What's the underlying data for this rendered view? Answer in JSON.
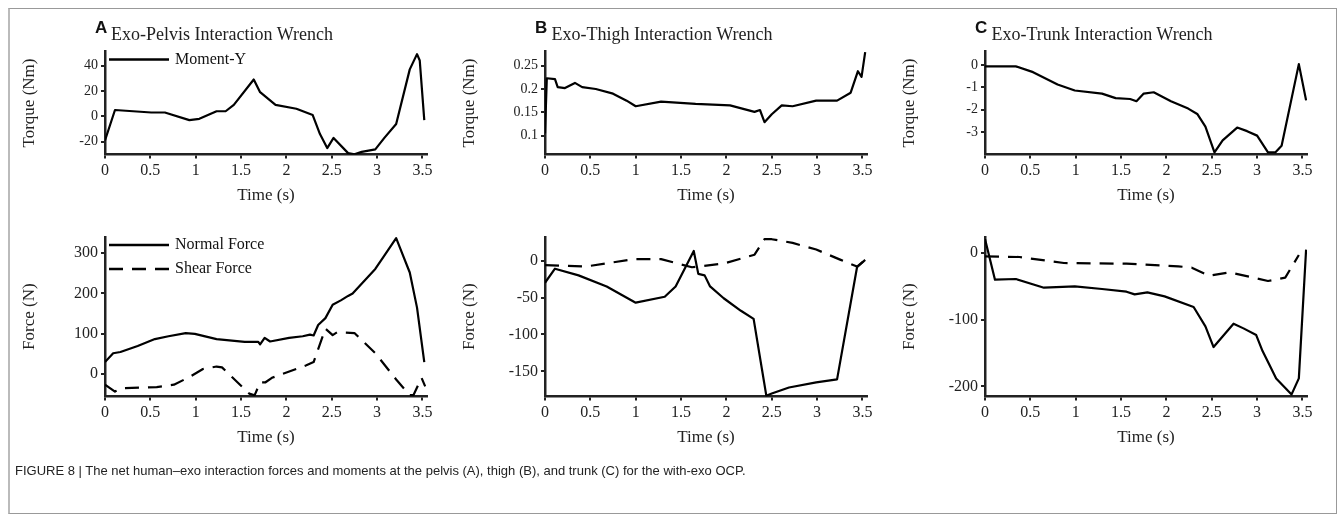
{
  "chart_data": [
    {
      "type": "line",
      "title": "Exo-Pelvis Interaction Wrench",
      "xlabel": "Time (s)",
      "ylabel": "Torque (Nm)",
      "annotations": [
        "A"
      ],
      "xlim": [
        0,
        3.55
      ],
      "xticks": [
        0,
        0.5,
        1,
        1.5,
        2,
        2.5,
        3,
        3.5
      ],
      "ylim": [
        -30,
        51
      ],
      "yticks": [
        -20,
        0,
        20,
        40
      ],
      "grid": false,
      "legend": "top left",
      "marker": "none",
      "line_style": "solid",
      "series": [
        {
          "name": "Moment-Y",
          "color": "#000000",
          "x": [
            0,
            0.11,
            0.51,
            0.66,
            0.93,
            1.04,
            1.23,
            1.33,
            1.42,
            1.64,
            1.71,
            1.88,
            2.11,
            2.29,
            2.37,
            2.45,
            2.52,
            2.68,
            2.75,
            2.83,
            2.98,
            3.08,
            3.21,
            3.36,
            3.44,
            3.47,
            3.52
          ],
          "values": [
            -19,
            5,
            3,
            3,
            -3,
            -2,
            4,
            4,
            9,
            29,
            19,
            9,
            6,
            1,
            -14,
            -25,
            -17,
            -29,
            -30,
            -28,
            -26,
            -17,
            -6,
            37,
            49,
            44,
            -3
          ]
        }
      ]
    },
    {
      "type": "line",
      "title": "Exo-Thigh Interaction Wrench",
      "xlabel": "Time (s)",
      "ylabel": "Torque (Nm)",
      "annotations": [
        "B"
      ],
      "xlim": [
        0,
        3.55
      ],
      "xticks": [
        0,
        0.5,
        1,
        1.5,
        2,
        2.5,
        3,
        3.5
      ],
      "ylim": [
        0.06,
        0.28
      ],
      "yticks": [
        0.1,
        0.15,
        0.2,
        0.25
      ],
      "grid": false,
      "marker": "none",
      "line_style": "solid",
      "series": [
        {
          "color": "#000000",
          "x": [
            0,
            0.02,
            0.11,
            0.14,
            0.22,
            0.33,
            0.41,
            0.56,
            0.75,
            0.9,
            1.0,
            1.28,
            1.66,
            2.04,
            2.31,
            2.37,
            2.42,
            2.5,
            2.61,
            2.73,
            2.99,
            3.22,
            3.37,
            3.45,
            3.49,
            3.53
          ],
          "values": [
            0.105,
            0.223,
            0.221,
            0.204,
            0.202,
            0.213,
            0.204,
            0.2,
            0.19,
            0.175,
            0.163,
            0.173,
            0.168,
            0.165,
            0.151,
            0.155,
            0.129,
            0.146,
            0.165,
            0.163,
            0.175,
            0.175,
            0.192,
            0.238,
            0.226,
            0.279
          ]
        }
      ]
    },
    {
      "type": "line",
      "title": "Exo-Trunk Interaction Wrench",
      "xlabel": "Time (s)",
      "ylabel": "Torque (Nm)",
      "annotations": [
        "C"
      ],
      "xlim": [
        0,
        3.55
      ],
      "xticks": [
        0,
        0.5,
        1,
        1.5,
        2,
        2.5,
        3,
        3.5
      ],
      "ylim": [
        -4,
        0.6
      ],
      "yticks": [
        -3,
        -2,
        -1,
        0
      ],
      "grid": false,
      "marker": "none",
      "line_style": "solid",
      "series": [
        {
          "color": "#000000",
          "x": [
            0,
            0.11,
            0.34,
            0.53,
            0.8,
            0.99,
            1.29,
            1.44,
            1.6,
            1.67,
            1.75,
            1.86,
            2.05,
            2.24,
            2.34,
            2.43,
            2.53,
            2.62,
            2.78,
            2.89,
            3.0,
            3.12,
            3.2,
            3.27,
            3.46,
            3.54
          ],
          "values": [
            -0.06,
            -0.06,
            -0.06,
            -0.32,
            -0.87,
            -1.14,
            -1.28,
            -1.48,
            -1.52,
            -1.62,
            -1.28,
            -1.22,
            -1.62,
            -1.95,
            -2.19,
            -2.76,
            -3.91,
            -3.37,
            -2.8,
            -2.96,
            -3.16,
            -3.91,
            -3.91,
            -3.61,
            0.04,
            -1.58
          ]
        }
      ]
    },
    {
      "type": "line",
      "xlabel": "Time (s)",
      "ylabel": "Force (N)",
      "annotations": [
        "FIGURE 8 | The net human–exo interaction forces and moments at the pelvis (A), thigh (B), and trunk (C) for the with-exo OCP."
      ],
      "xlim": [
        0,
        3.55
      ],
      "xticks": [
        0,
        0.5,
        1,
        1.5,
        2,
        2.5,
        3,
        3.5
      ],
      "ylim": [
        -55,
        340
      ],
      "yticks": [
        0,
        100,
        200,
        300
      ],
      "grid": false,
      "legend": "top left",
      "marker": "none",
      "line_style": "solid",
      "series": [
        {
          "name": "Normal Force",
          "color": "#000000",
          "x": [
            0,
            0.09,
            0.17,
            0.36,
            0.55,
            0.7,
            0.89,
            0.99,
            1.23,
            1.54,
            1.69,
            1.71,
            1.76,
            1.82,
            2.03,
            2.18,
            2.26,
            2.3,
            2.35,
            2.43,
            2.51,
            2.6,
            2.68,
            2.73,
            2.98,
            3.21,
            3.36,
            3.44,
            3.52
          ],
          "values": [
            30,
            52,
            55,
            70,
            87,
            94,
            102,
            100,
            87,
            80,
            80,
            74,
            90,
            81,
            90,
            94,
            98,
            96,
            122,
            139,
            172,
            183,
            194,
            200,
            261,
            337,
            252,
            165,
            30
          ]
        },
        {
          "name": "Shear Force",
          "color": "#000000",
          "line_style": "dashed",
          "x": [
            0,
            0.11,
            0.17,
            0.57,
            0.76,
            0.93,
            1.08,
            1.23,
            1.29,
            1.59,
            1.65,
            1.71,
            1.77,
            1.84,
            2.22,
            2.3,
            2.43,
            2.51,
            2.56,
            2.75,
            2.98,
            3.21,
            3.36,
            3.4,
            3.49,
            3.53
          ],
          "values": [
            -26,
            -43,
            -35,
            -32,
            -26,
            -7,
            13,
            19,
            17,
            -48,
            -52,
            -20,
            -20,
            -9,
            22,
            30,
            113,
            97,
            104,
            102,
            52,
            -13,
            -52,
            -52,
            -9,
            -30
          ]
        }
      ]
    },
    {
      "type": "line",
      "xlabel": "Time (s)",
      "ylabel": "Force (N)",
      "xlim": [
        0,
        3.55
      ],
      "xticks": [
        0,
        0.5,
        1,
        1.5,
        2,
        2.5,
        3,
        3.5
      ],
      "ylim": [
        -184,
        32
      ],
      "yticks": [
        -150,
        -100,
        -50,
        0
      ],
      "grid": false,
      "marker": "none",
      "line_style": "solid",
      "series": [
        {
          "color": "#000000",
          "x": [
            0,
            0.11,
            0.37,
            0.68,
            1.0,
            1.32,
            1.44,
            1.64,
            1.69,
            1.76,
            1.82,
            1.97,
            2.16,
            2.3,
            2.44,
            2.5,
            2.69,
            2.99,
            3.22,
            3.44,
            3.53
          ],
          "values": [
            -30,
            -11,
            -20,
            -35,
            -57,
            -49,
            -35,
            13,
            -18,
            -20,
            -35,
            -51,
            -68,
            -79,
            -183,
            -180,
            -172,
            -165,
            -161,
            -9,
            1
          ]
        },
        {
          "color": "#000000",
          "line_style": "dashed",
          "x": [
            0,
            0.45,
            0.98,
            1.28,
            1.62,
            1.97,
            2.31,
            2.42,
            2.5,
            2.73,
            2.99,
            3.26,
            3.44,
            3.53
          ],
          "values": [
            -6,
            -8,
            2,
            2,
            -9,
            -4,
            8,
            29,
            29,
            24,
            15,
            1,
            -8,
            1
          ]
        }
      ]
    },
    {
      "type": "line",
      "xlabel": "Time (s)",
      "ylabel": "Force (N)",
      "xlim": [
        0,
        3.55
      ],
      "xticks": [
        0,
        0.5,
        1,
        1.5,
        2,
        2.5,
        3,
        3.5
      ],
      "ylim": [
        -215,
        24
      ],
      "yticks": [
        -200,
        -100,
        0
      ],
      "grid": false,
      "marker": "none",
      "line_style": "solid",
      "series": [
        {
          "color": "#000000",
          "x": [
            0,
            0.11,
            0.34,
            0.65,
            0.99,
            1.29,
            1.56,
            1.65,
            1.79,
            1.98,
            2.3,
            2.43,
            2.52,
            2.74,
            2.85,
            2.99,
            3.06,
            3.21,
            3.38,
            3.46,
            3.54
          ],
          "values": [
            21,
            -40,
            -39,
            -52,
            -50,
            -54,
            -58,
            -62,
            -59,
            -65,
            -81,
            -110,
            -141,
            -106,
            -113,
            -123,
            -147,
            -188,
            -212,
            -188,
            5
          ]
        },
        {
          "color": "#000000",
          "line_style": "dashed",
          "x": [
            0,
            0.38,
            0.87,
            1.56,
            2.13,
            2.28,
            2.47,
            2.7,
            2.93,
            3.12,
            3.31,
            3.46
          ],
          "values": [
            -5,
            -6,
            -15,
            -16,
            -20,
            -22,
            -34,
            -29,
            -36,
            -42,
            -37,
            -3
          ]
        }
      ]
    }
  ]
}
